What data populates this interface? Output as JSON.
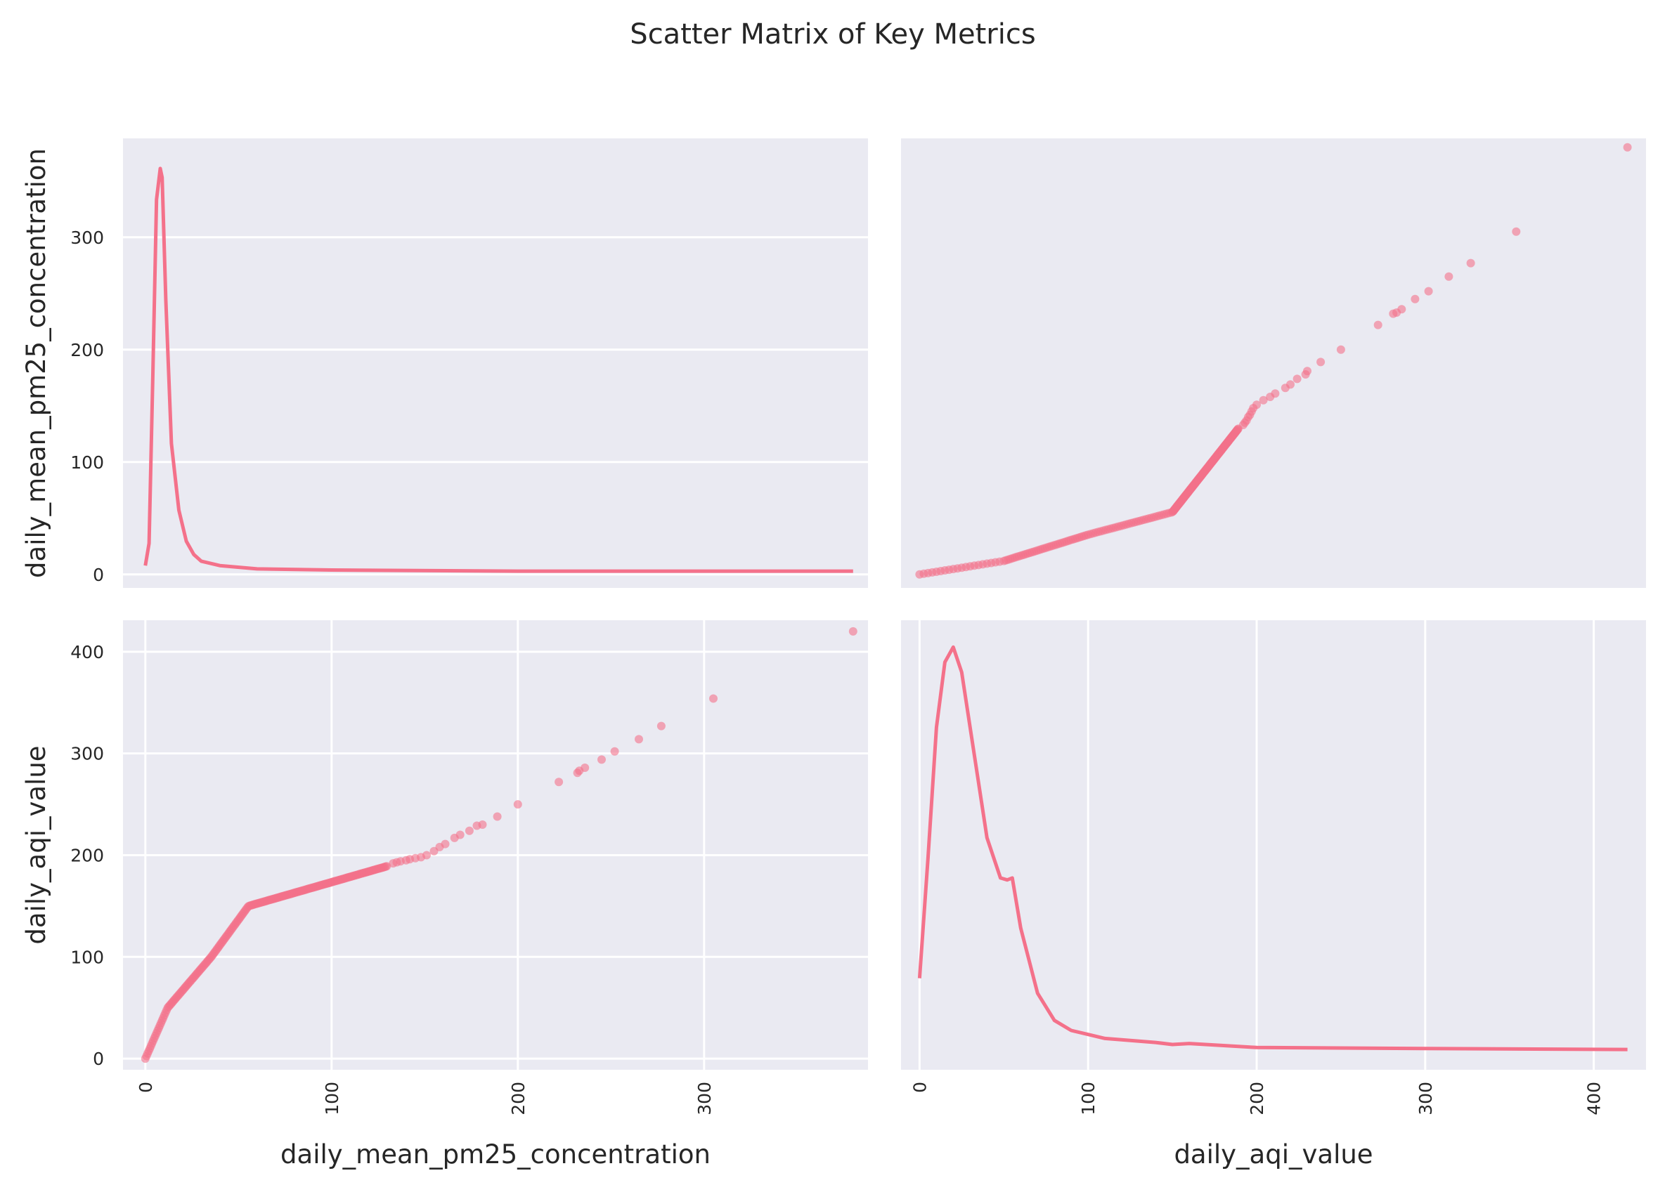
{
  "title": "Scatter Matrix of Key Metrics",
  "accent_color": "#f4718a",
  "panel_background": "#eaeaf2",
  "chart_data": {
    "type": "scatter",
    "grid": true,
    "variables": [
      "daily_mean_pm25_concentration",
      "daily_aqi_value"
    ],
    "ranges": {
      "daily_mean_pm25_concentration": [
        -12,
        388
      ],
      "daily_aqi_value": [
        -11,
        431
      ]
    },
    "ticks": {
      "daily_mean_pm25_concentration": [
        0,
        100,
        200,
        300
      ],
      "daily_aqi_value": [
        0,
        100,
        200,
        300,
        400
      ]
    },
    "diagonal_kde": {
      "daily_mean_pm25_concentration": {
        "x": [
          0,
          2,
          4,
          6,
          8,
          9,
          11,
          14,
          18,
          22,
          26,
          30,
          40,
          60,
          100,
          200,
          300,
          380
        ],
        "y": [
          10,
          30,
          180,
          340,
          368,
          360,
          250,
          120,
          60,
          32,
          20,
          14,
          10,
          7,
          6,
          5,
          5,
          5
        ]
      },
      "daily_aqi_value": {
        "x": [
          0,
          5,
          10,
          15,
          20,
          25,
          30,
          40,
          48,
          52,
          55,
          60,
          70,
          80,
          90,
          100,
          110,
          140,
          150,
          160,
          200,
          300,
          420
        ],
        "y": [
          80,
          200,
          330,
          395,
          410,
          385,
          330,
          220,
          180,
          178,
          180,
          130,
          65,
          38,
          28,
          24,
          20,
          16,
          14,
          15,
          11,
          10,
          9
        ]
      }
    },
    "scatter_relation": {
      "daily_mean_pm25_concentration": [
        0,
        12,
        35.4,
        55.4,
        150.4,
        250.4,
        380
      ],
      "daily_aqi_value": [
        0,
        50,
        100,
        150,
        200,
        300,
        420
      ]
    },
    "dense_pm25_range": [
      0,
      130
    ],
    "sparse_points_pm25": [
      133,
      135,
      137,
      140,
      142,
      145,
      148,
      151,
      155,
      158,
      161,
      166,
      169,
      174,
      178,
      181,
      189,
      200,
      222,
      232,
      233,
      236,
      245,
      252,
      265,
      277,
      305,
      380
    ],
    "sparse_points_aqi": [
      192,
      193,
      194,
      195,
      196,
      197,
      198,
      200,
      204,
      208,
      211,
      217,
      220,
      224,
      229,
      230,
      238,
      250,
      272,
      281,
      283,
      286,
      294,
      302,
      314,
      327,
      354,
      420
    ]
  }
}
